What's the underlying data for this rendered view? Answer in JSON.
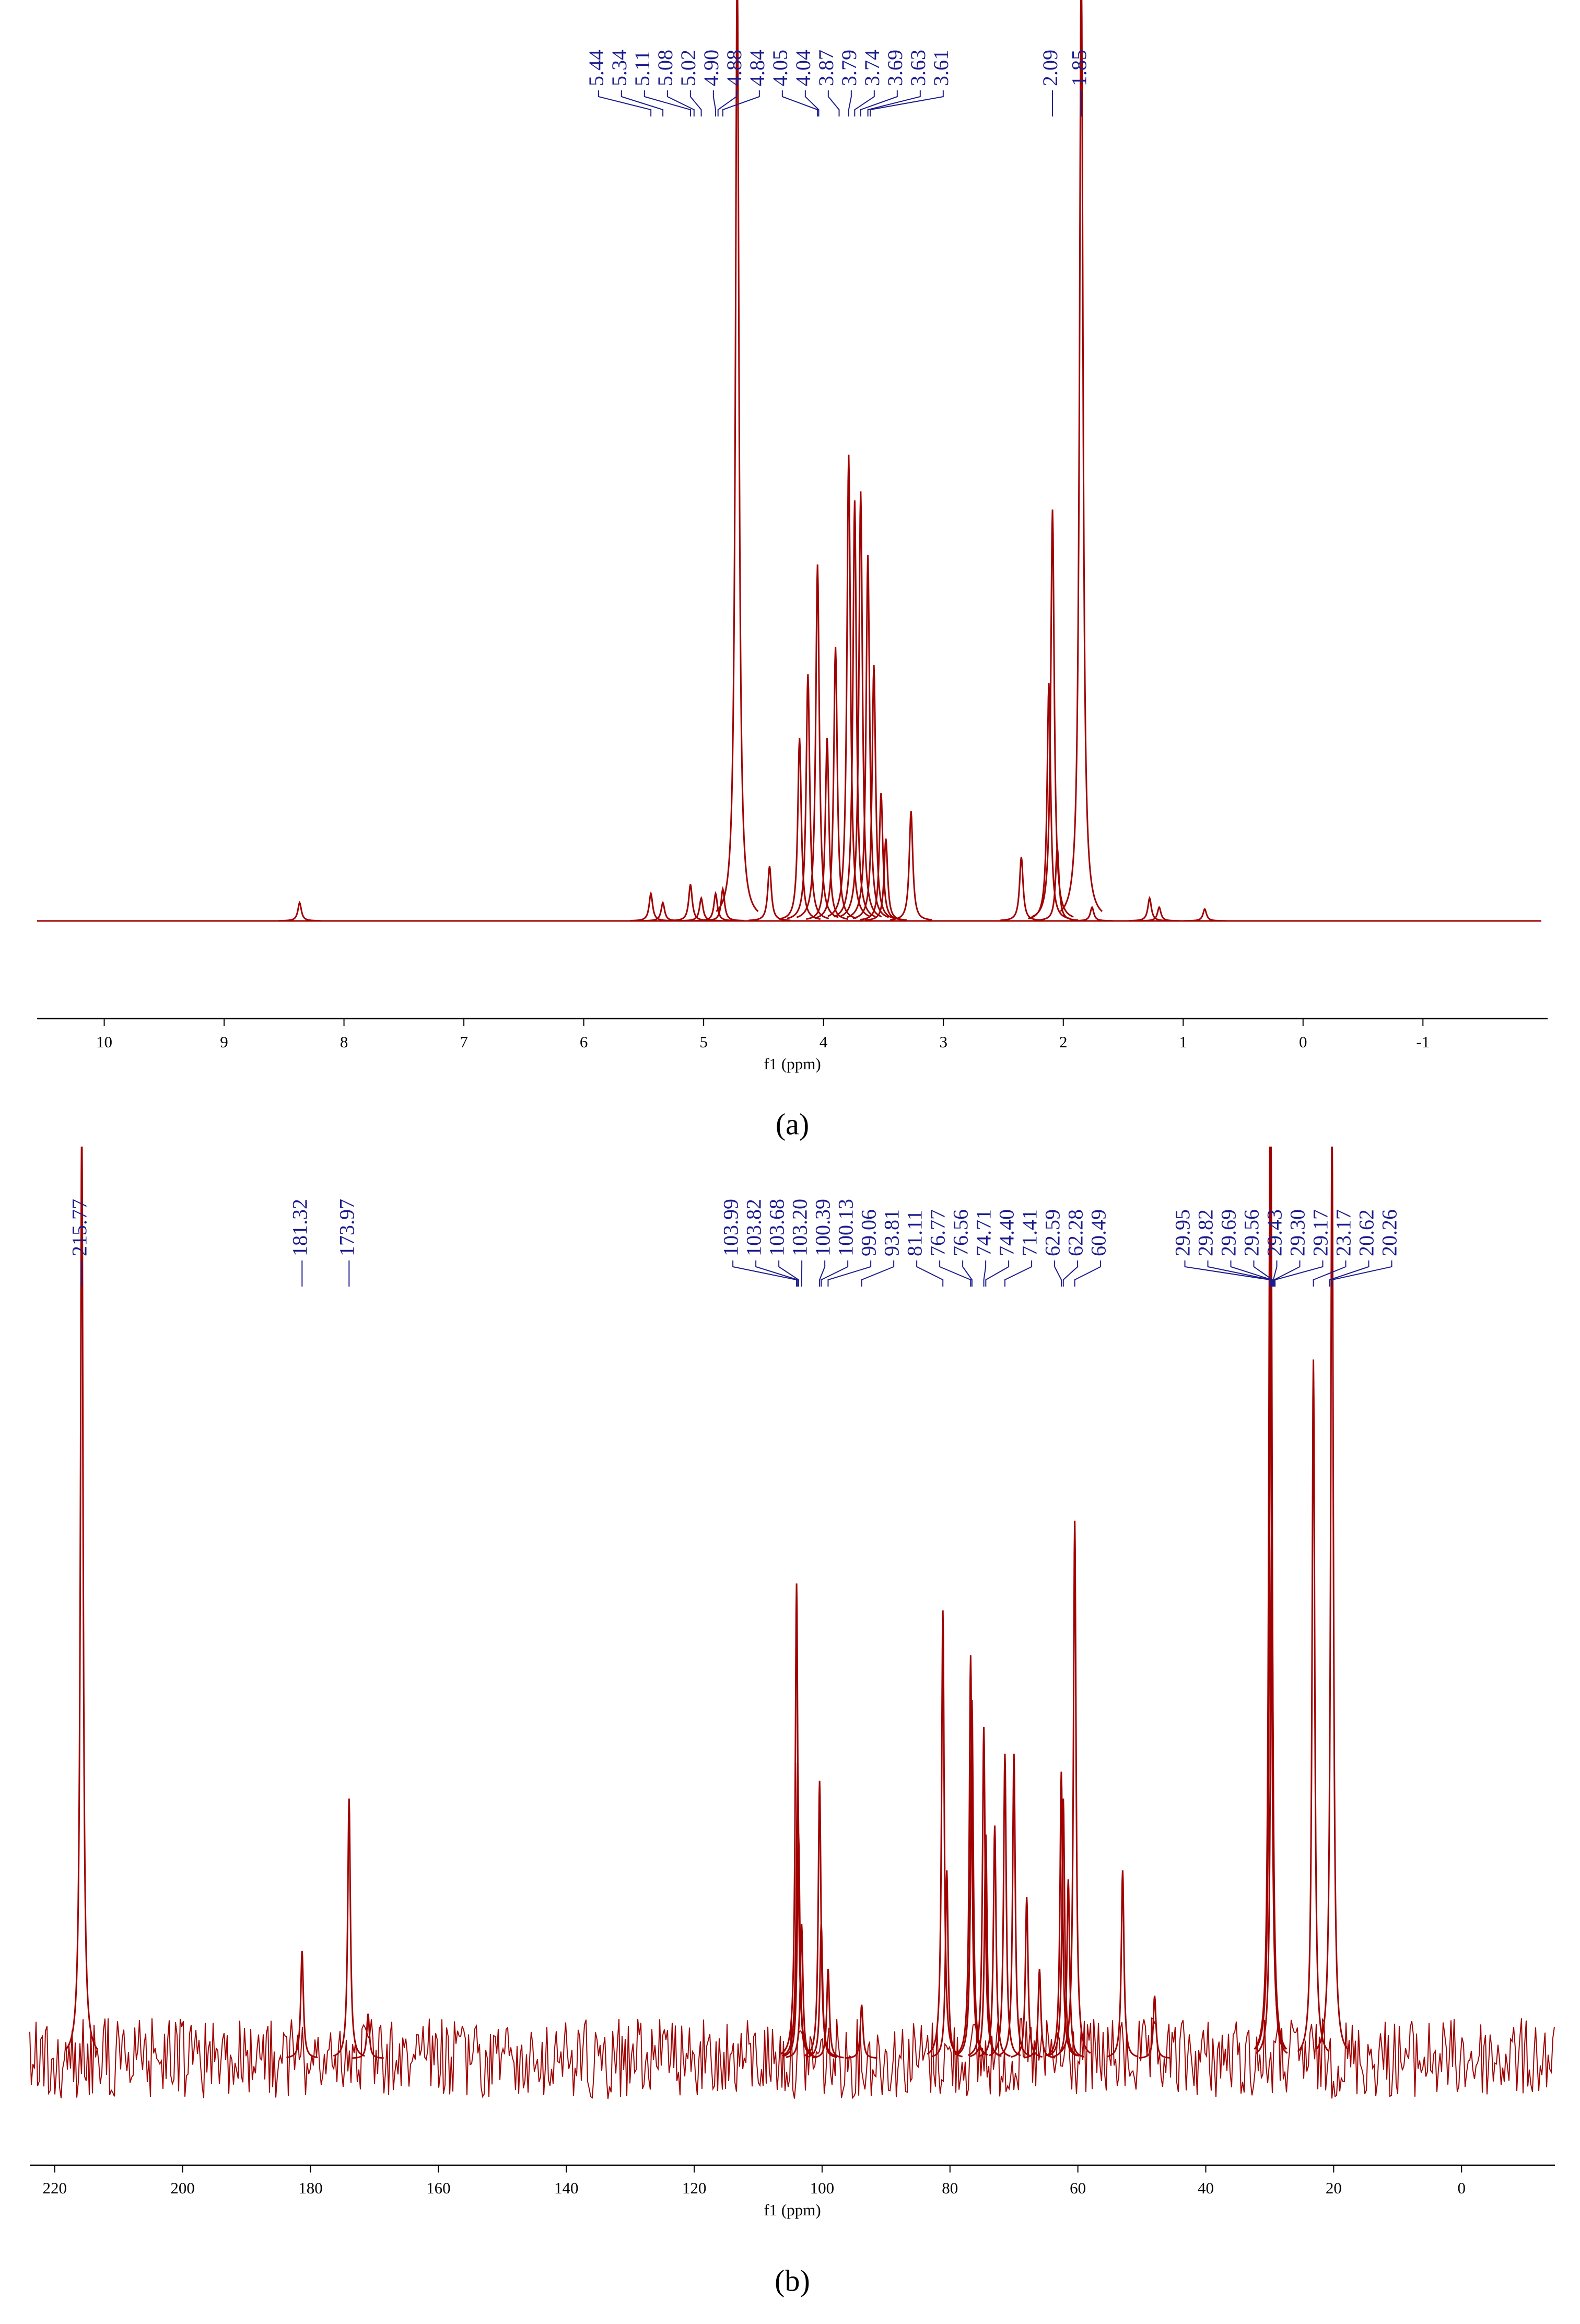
{
  "chart_data": [
    {
      "type": "nmr",
      "caption": "(a)",
      "xlabel": "f1 (ppm)",
      "color": "#a00000",
      "label_color": "#1c1c8c",
      "x": [
        8.37,
        5.44,
        5.34,
        5.11,
        5.02,
        4.9,
        4.84,
        4.72,
        4.45,
        4.2,
        4.13,
        4.05,
        3.97,
        3.9,
        3.79,
        3.74,
        3.69,
        3.63,
        3.58,
        3.52,
        3.48,
        3.27,
        2.35,
        2.12,
        2.09,
        2.05,
        1.85,
        1.76,
        1.28,
        1.2,
        0.82
      ],
      "values": [
        2,
        3,
        2,
        4,
        2.5,
        3,
        3.5,
        105,
        6,
        20,
        27,
        39,
        20,
        30,
        51,
        46,
        47,
        40,
        28,
        14,
        9,
        12,
        7,
        26,
        45,
        8,
        105,
        1.5,
        2.5,
        1.5,
        1.3
      ],
      "xlim": [
        10.56,
        -2.04
      ],
      "ylim": [
        0,
        100
      ],
      "xticks": [
        10,
        9,
        8,
        7,
        6,
        5,
        4,
        3,
        2,
        1,
        0,
        -1
      ],
      "peak_labels": [
        5.44,
        5.34,
        5.11,
        5.08,
        5.02,
        {
          "value": 4.9,
          "label": "4.90"
        },
        4.88,
        4.84,
        4.05,
        4.04,
        3.87,
        3.79,
        3.74,
        3.69,
        3.63,
        3.61,
        2.09,
        1.85
      ]
    },
    {
      "type": "nmr",
      "caption": "(b)",
      "xlabel": "f1 (ppm)",
      "color": "#a00000",
      "label_color": "#1c1c8c",
      "x": [
        215.77,
        181.32,
        173.97,
        171.0,
        103.99,
        103.82,
        103.68,
        103.2,
        100.39,
        100.13,
        99.06,
        93.81,
        81.11,
        80.5,
        76.77,
        76.56,
        74.71,
        74.4,
        73.0,
        71.41,
        70.0,
        68.0,
        66.0,
        62.59,
        62.28,
        61.5,
        60.49,
        53.0,
        48.0,
        29.95,
        29.82,
        29.69,
        23.17,
        20.26
      ],
      "values": [
        105,
        12,
        29,
        5,
        53,
        33,
        25,
        15,
        31,
        15,
        10,
        6,
        50,
        21,
        45,
        40,
        37,
        25,
        26,
        34,
        34,
        18,
        10,
        32,
        29,
        20,
        60,
        21,
        7,
        105,
        105,
        60,
        78,
        105
      ],
      "xlim": [
        223.9,
        -14.6
      ],
      "ylim": [
        -8,
        100
      ],
      "xticks": [
        220,
        200,
        180,
        160,
        140,
        120,
        100,
        80,
        60,
        40,
        20,
        0
      ],
      "peak_labels": [
        215.77,
        181.32,
        173.97,
        103.99,
        103.82,
        103.68,
        {
          "value": 103.2,
          "label": "103.20"
        },
        100.39,
        100.13,
        99.06,
        93.81,
        81.11,
        76.77,
        76.56,
        74.71,
        {
          "value": 74.4,
          "label": "74.40"
        },
        71.41,
        62.59,
        62.28,
        60.49,
        29.95,
        29.82,
        29.69,
        29.56,
        29.43,
        {
          "value": 29.3,
          "label": "29.30"
        },
        29.17,
        23.17,
        20.62,
        20.26
      ]
    }
  ]
}
